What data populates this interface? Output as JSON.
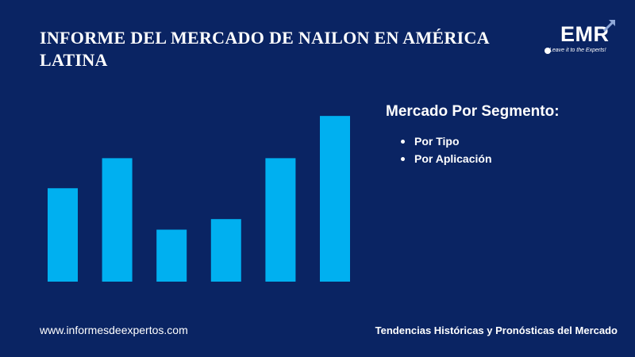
{
  "header": {
    "title": "INFORME DEL MERCADO DE NAILON EN AMÉRICA LATINA"
  },
  "logo": {
    "text": "EMR",
    "tagline": "Leave it to the Experts!",
    "icon": "arrow-up-right-icon"
  },
  "segments": {
    "heading": "Mercado Por Segmento:",
    "items": [
      "Por Tipo",
      "Por Aplicación"
    ]
  },
  "footer": {
    "website": "www.informesdeexpertos.com",
    "tagline": "Tendencias Históricas y Pronósticas del Mercado"
  },
  "colors": {
    "background": "#0a2463",
    "bar": "#00b0f0",
    "text": "#ffffff"
  },
  "chart_data": {
    "type": "bar",
    "categories": [
      "",
      "",
      "",
      "",
      "",
      ""
    ],
    "values": [
      115,
      152,
      64,
      77,
      152,
      204
    ],
    "ylim": [
      0,
      210
    ],
    "grid": false,
    "title": "",
    "xlabel": "",
    "ylabel": ""
  }
}
